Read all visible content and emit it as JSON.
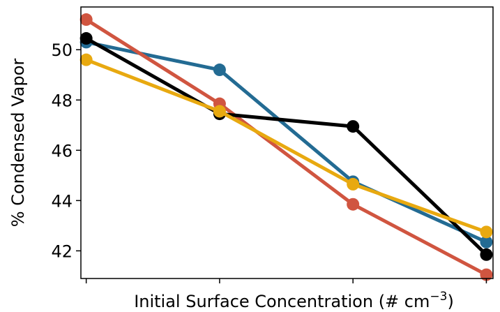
{
  "chart_data": {
    "type": "line",
    "title": "",
    "xlabel": "Initial Surface Concentration (# cm",
    "xlabel_superscript": "−3",
    "xlabel_suffix": ")",
    "ylabel": "% Condensed Vapor",
    "ylim": [
      40.9,
      51.7
    ],
    "yticks": [
      42,
      44,
      46,
      48,
      50
    ],
    "x": [
      1,
      2,
      3,
      4
    ],
    "xlim": [
      0.96,
      4.05
    ],
    "grid": false,
    "legend": "none",
    "series": [
      {
        "color": "#236b93",
        "values": [
          50.3,
          49.2,
          44.75,
          42.35
        ]
      },
      {
        "color": "#d05540",
        "values": [
          51.2,
          47.85,
          43.85,
          41.05
        ]
      },
      {
        "color": "#000000",
        "values": [
          50.45,
          47.45,
          46.95,
          41.85
        ]
      },
      {
        "color": "#e8a910",
        "values": [
          49.6,
          47.55,
          44.65,
          42.75
        ]
      }
    ]
  }
}
